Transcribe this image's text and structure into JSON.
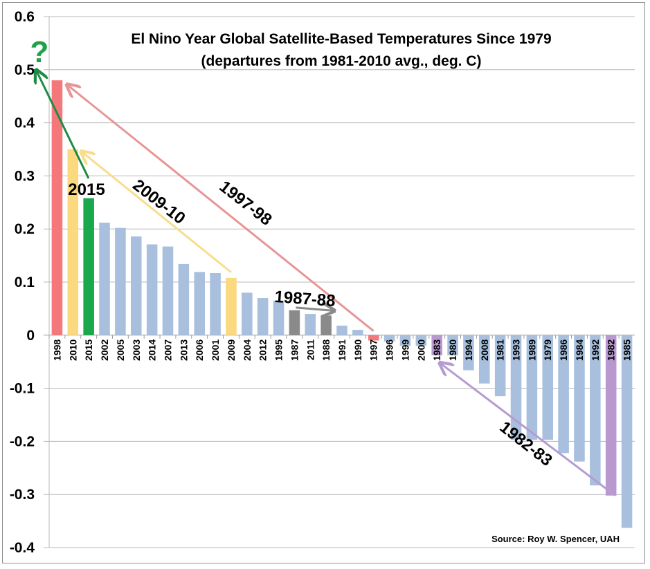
{
  "chart_data": {
    "type": "bar",
    "title": "El Nino Year Global Satellite-Based Temperatures Since 1979",
    "subtitle": "(departures from 1981-2010 avg., deg. C)",
    "xlabel": "",
    "ylabel": "",
    "ylim": [
      -0.4,
      0.6
    ],
    "yticks": [
      0.6,
      0.5,
      0.4,
      0.3,
      0.2,
      0.1,
      0,
      -0.1,
      -0.2,
      -0.3,
      -0.4
    ],
    "ytick_labels": [
      "0.6",
      "0.5",
      "0.4",
      "0.3",
      "0.2",
      "0.1",
      "0",
      "-0.1",
      "-0.2",
      "-0.3",
      "-0.4"
    ],
    "grid": true,
    "categories": [
      "1998",
      "2010",
      "2015",
      "2002",
      "2005",
      "2003",
      "2014",
      "2007",
      "2013",
      "2006",
      "2001",
      "2009",
      "2004",
      "2012",
      "1995",
      "1987",
      "2011",
      "1988",
      "1991",
      "1990",
      "1997",
      "1996",
      "1999",
      "2000",
      "1983",
      "1980",
      "1994",
      "2008",
      "1981",
      "1993",
      "1989",
      "1979",
      "1986",
      "1984",
      "1992",
      "1982",
      "1985"
    ],
    "values": [
      0.48,
      0.35,
      0.258,
      0.212,
      0.202,
      0.186,
      0.171,
      0.167,
      0.134,
      0.119,
      0.117,
      0.108,
      0.08,
      0.07,
      0.065,
      0.047,
      0.04,
      0.037,
      0.018,
      0.01,
      -0.01,
      -0.012,
      -0.02,
      -0.02,
      -0.038,
      -0.038,
      -0.066,
      -0.091,
      -0.115,
      -0.197,
      -0.197,
      -0.197,
      -0.222,
      -0.238,
      -0.283,
      -0.302,
      -0.363
    ],
    "bar_colors": {
      "1998": "#f4787b",
      "1997": "#f4787b",
      "2010": "#fbd97f",
      "2009": "#fbd97f",
      "2015": "#19a84b",
      "1987": "#8a8a8a",
      "1988": "#8a8a8a",
      "1983": "#b898cf",
      "1982": "#b898cf",
      "default": "#a8c0de"
    },
    "annotations": [
      {
        "label": "2015",
        "color": "#1e8c44",
        "from_category": "2015",
        "to_value": 0.5,
        "to": "y-axis 0.5"
      },
      {
        "label": "2009-10",
        "color": "#f7dd8c",
        "from_category": "2009",
        "to_category": "2010"
      },
      {
        "label": "1997-98",
        "color": "#e89595",
        "from_category": "1997",
        "to_category": "1998"
      },
      {
        "label": "1987-88",
        "color": "#8a8a8a",
        "from_category": "1987",
        "to_category": "1988"
      },
      {
        "label": "1982-83",
        "color": "#b69bd2",
        "from_category": "1982",
        "to_category": "1983"
      }
    ],
    "question_mark": "?",
    "source": "Source: Roy W. Spencer, UAH",
    "legend": "none"
  }
}
